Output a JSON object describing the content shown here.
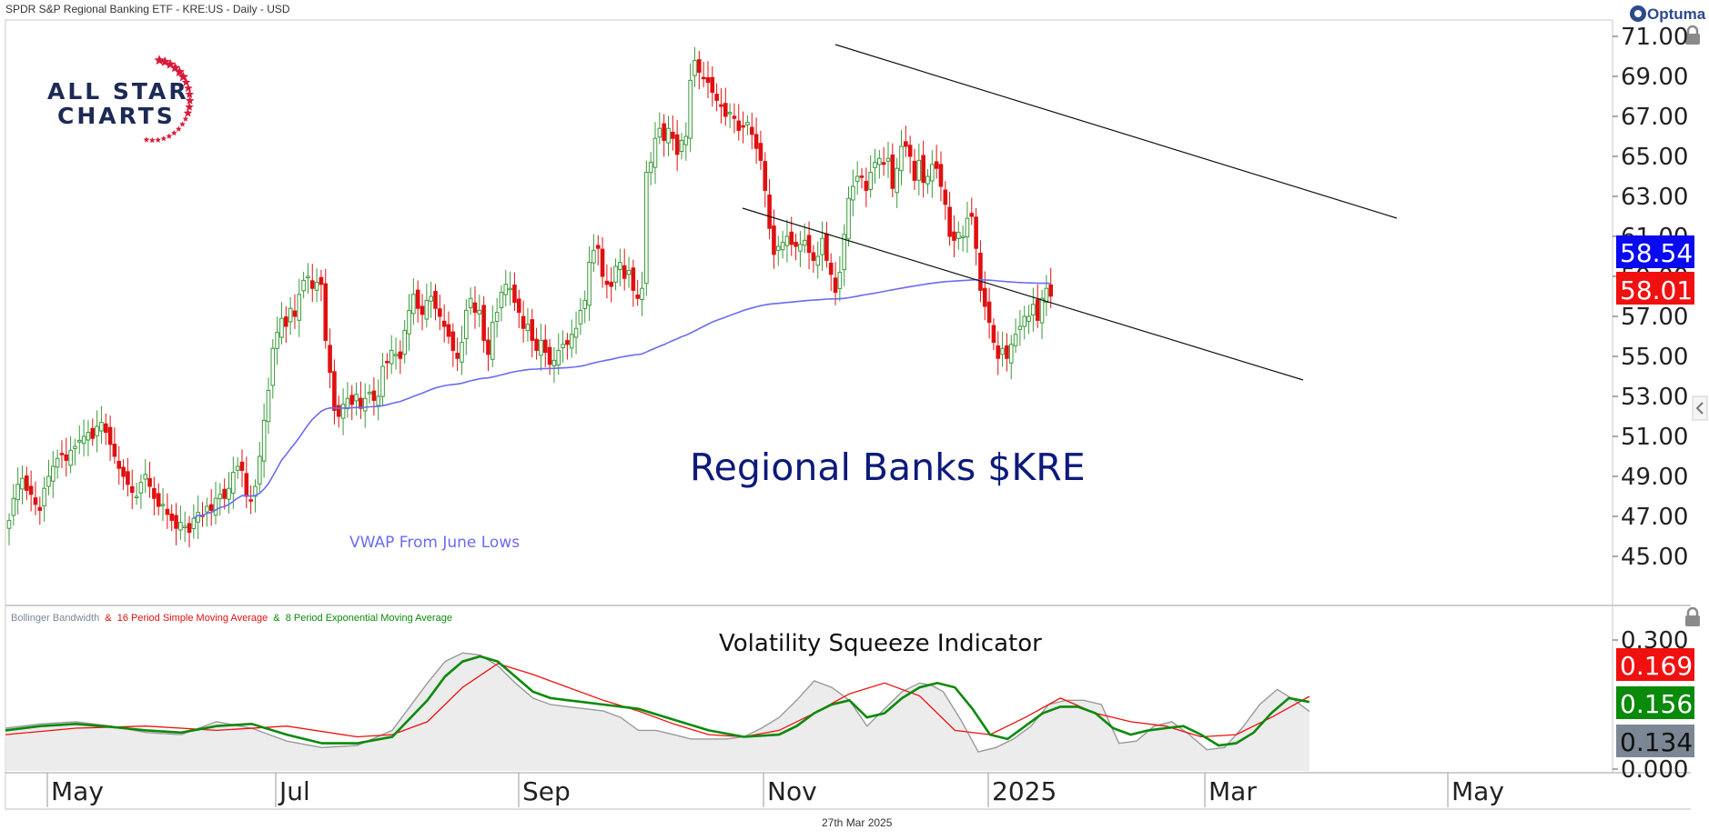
{
  "header": {
    "title": "SPDR S&P Regional Banking ETF - KRE:US - Daily - USD",
    "brand": "Optuma"
  },
  "logo": {
    "line1": "ALL STAR",
    "line2": "CHARTS"
  },
  "footer": {
    "date": "27th Mar 2025"
  },
  "colors": {
    "up": "#3a9a3a",
    "down": "#e01010",
    "vwap": "#6b6bf0",
    "badge_vwap": "#0a0af0",
    "badge_price": "#f01010",
    "bbw": "#9a9a9a",
    "sma": "#f01010",
    "ema": "#0a8a0a",
    "gray_badge": "#7b8794"
  },
  "chart_data": [
    {
      "type": "candlestick",
      "title": "Regional Banks $KRE",
      "x_labels": [
        "May",
        "Jul",
        "Sep",
        "Nov",
        "2025",
        "Mar",
        "May"
      ],
      "y_ticks": [
        "71.00",
        "69.00",
        "67.00",
        "65.00",
        "63.00",
        "61.00",
        "59.00",
        "57.00",
        "55.00",
        "53.00",
        "51.00",
        "49.00",
        "47.00",
        "45.00"
      ],
      "ylim": [
        45,
        71.5
      ],
      "badges": {
        "vwap": "58.54",
        "price": "58.01"
      },
      "vwap_label": "VWAP From June Lows",
      "closes": [
        46.8,
        47.9,
        48.6,
        48.9,
        48.3,
        48.1,
        47.6,
        47.3,
        48.4,
        49.0,
        49.5,
        49.9,
        50.1,
        49.8,
        50.3,
        50.5,
        50.8,
        51.0,
        51.2,
        50.9,
        51.5,
        51.7,
        51.2,
        50.6,
        50.0,
        49.4,
        49.0,
        48.6,
        48.2,
        48.0,
        48.7,
        49.1,
        48.5,
        47.9,
        47.5,
        47.6,
        47.1,
        46.8,
        46.4,
        46.7,
        46.5,
        46.2,
        46.9,
        47.2,
        47.0,
        47.5,
        47.3,
        47.9,
        48.1,
        47.9,
        48.4,
        49.2,
        49.5,
        49.3,
        48.0,
        47.8,
        48.5,
        50.0,
        51.8,
        53.3,
        55.4,
        56.2,
        56.9,
        56.5,
        57.4,
        57.0,
        58.1,
        58.8,
        59.0,
        58.4,
        58.7,
        58.6,
        55.8,
        54.2,
        52.3,
        52.0,
        52.6,
        52.9,
        52.6,
        53.1,
        52.4,
        52.9,
        53.2,
        52.8,
        53.0,
        54.5,
        54.7,
        55.3,
        55.1,
        54.9,
        56.3,
        57.3,
        58.1,
        57.4,
        57.1,
        57.8,
        58.0,
        57.4,
        57.0,
        56.5,
        56.0,
        55.3,
        54.9,
        55.7,
        57.3,
        57.9,
        57.2,
        57.3,
        55.8,
        55.1,
        56.7,
        57.2,
        58.2,
        58.6,
        58.4,
        57.7,
        57.2,
        56.4,
        56.6,
        55.8,
        55.3,
        55.8,
        55.2,
        54.6,
        54.8,
        55.3,
        55.6,
        55.6,
        56.1,
        56.4,
        57.3,
        57.8,
        59.7,
        60.3,
        60.4,
        59.0,
        58.6,
        58.5,
        59.5,
        59.7,
        58.9,
        59.3,
        58.3,
        57.9,
        58.4,
        64.2,
        64.7,
        65.9,
        66.4,
        65.8,
        66.4,
        65.9,
        65.1,
        65.8,
        66.0,
        68.8,
        69.8,
        69.2,
        68.9,
        68.7,
        68.2,
        67.8,
        67.5,
        67.0,
        67.2,
        66.9,
        66.3,
        66.5,
        66.7,
        66.1,
        65.4,
        64.8,
        63.3,
        61.4,
        60.1,
        60.5,
        60.7,
        61.0,
        60.6,
        60.5,
        60.6,
        60.8,
        60.2,
        59.8,
        60.0,
        60.9,
        59.8,
        59.1,
        58.2,
        59.2,
        61.1,
        62.9,
        63.5,
        64.0,
        64.0,
        63.3,
        64.2,
        64.7,
        64.9,
        64.6,
        64.9,
        63.4,
        64.4,
        65.5,
        65.5,
        65.0,
        63.8,
        64.8,
        63.7,
        64.0,
        64.6,
        64.4,
        63.5,
        62.6,
        61.0,
        60.8,
        61.2,
        61.0,
        61.9,
        62.0,
        60.4,
        58.3,
        57.5,
        56.7,
        55.7,
        54.9,
        55.4,
        54.9,
        55.6,
        56.1,
        56.5,
        57.0,
        57.0,
        57.6,
        56.8,
        57.9,
        58.4,
        58.01
      ]
    },
    {
      "type": "line",
      "title": "Volatility Squeeze Indicator",
      "legend": [
        "Bollinger Bandwidth",
        "16 Period Simple Moving Average",
        "8 Period Exponential Moving Average"
      ],
      "legend_joiners": [
        "&",
        "&"
      ],
      "y_ticks": [
        "0.300",
        "0.000"
      ],
      "ylim": [
        0,
        0.3
      ],
      "badges": {
        "sma": "0.169",
        "ema": "0.156",
        "bbw": "0.134"
      },
      "series": [
        {
          "name": "Bollinger Bandwidth",
          "x": [
            0,
            12,
            24,
            36,
            48,
            60,
            72,
            84,
            96,
            108,
            120,
            132,
            144,
            150,
            156,
            162,
            168,
            174,
            180,
            186,
            192,
            198,
            204,
            210,
            216,
            222,
            228,
            234,
            240,
            246,
            252,
            258,
            264,
            270,
            276,
            282,
            288,
            294,
            300,
            306,
            312,
            316,
            320,
            326,
            332,
            338,
            344,
            350,
            356,
            362,
            368,
            374,
            380,
            386,
            392,
            398,
            404,
            410,
            416,
            422,
            428,
            434,
            440,
            445
          ],
          "y": [
            0.095,
            0.105,
            0.11,
            0.1,
            0.085,
            0.08,
            0.11,
            0.095,
            0.065,
            0.05,
            0.055,
            0.09,
            0.2,
            0.25,
            0.27,
            0.265,
            0.24,
            0.2,
            0.165,
            0.15,
            0.145,
            0.14,
            0.135,
            0.12,
            0.09,
            0.09,
            0.08,
            0.07,
            0.07,
            0.07,
            0.075,
            0.095,
            0.12,
            0.16,
            0.205,
            0.19,
            0.16,
            0.1,
            0.14,
            0.18,
            0.2,
            0.195,
            0.18,
            0.115,
            0.04,
            0.05,
            0.07,
            0.1,
            0.15,
            0.16,
            0.16,
            0.15,
            0.06,
            0.065,
            0.1,
            0.11,
            0.08,
            0.045,
            0.05,
            0.095,
            0.15,
            0.185,
            0.16,
            0.134
          ]
        },
        {
          "name": "16 Period Simple Moving Average",
          "x": [
            0,
            24,
            48,
            72,
            96,
            120,
            132,
            144,
            156,
            168,
            180,
            192,
            204,
            216,
            228,
            240,
            252,
            264,
            276,
            288,
            300,
            312,
            324,
            336,
            348,
            360,
            372,
            384,
            396,
            408,
            420,
            432,
            445
          ],
          "y": [
            0.08,
            0.095,
            0.1,
            0.09,
            0.1,
            0.075,
            0.08,
            0.11,
            0.19,
            0.245,
            0.22,
            0.19,
            0.16,
            0.135,
            0.105,
            0.08,
            0.075,
            0.09,
            0.13,
            0.175,
            0.2,
            0.17,
            0.09,
            0.08,
            0.12,
            0.165,
            0.13,
            0.11,
            0.1,
            0.075,
            0.08,
            0.12,
            0.169
          ]
        },
        {
          "name": "8 Period Exponential Moving Average",
          "x": [
            0,
            12,
            24,
            36,
            48,
            60,
            72,
            84,
            96,
            108,
            120,
            132,
            144,
            150,
            156,
            162,
            168,
            174,
            180,
            186,
            192,
            204,
            216,
            228,
            240,
            252,
            264,
            270,
            276,
            282,
            288,
            294,
            300,
            306,
            312,
            318,
            324,
            330,
            336,
            342,
            348,
            354,
            360,
            366,
            372,
            378,
            384,
            390,
            396,
            402,
            408,
            414,
            420,
            426,
            432,
            438,
            445
          ],
          "y": [
            0.09,
            0.1,
            0.105,
            0.098,
            0.09,
            0.085,
            0.1,
            0.105,
            0.08,
            0.06,
            0.06,
            0.075,
            0.16,
            0.215,
            0.25,
            0.262,
            0.25,
            0.215,
            0.18,
            0.165,
            0.16,
            0.15,
            0.14,
            0.115,
            0.09,
            0.075,
            0.08,
            0.1,
            0.13,
            0.15,
            0.16,
            0.12,
            0.13,
            0.165,
            0.19,
            0.2,
            0.19,
            0.14,
            0.08,
            0.07,
            0.1,
            0.13,
            0.145,
            0.145,
            0.13,
            0.095,
            0.08,
            0.09,
            0.095,
            0.1,
            0.08,
            0.055,
            0.06,
            0.085,
            0.13,
            0.165,
            0.156
          ]
        }
      ]
    }
  ]
}
